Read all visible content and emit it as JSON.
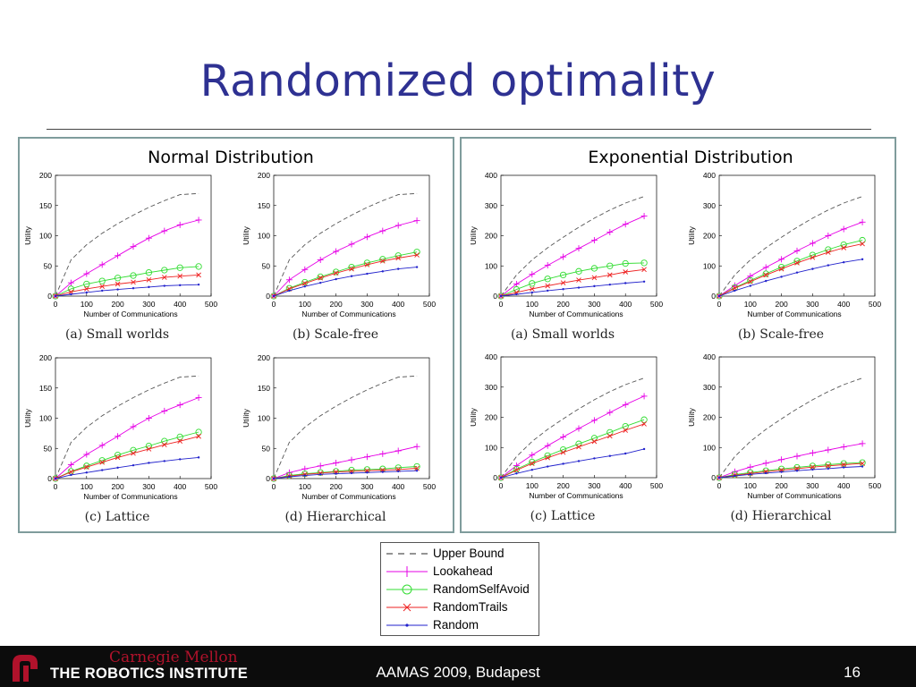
{
  "title": "Randomized optimality",
  "panels": [
    {
      "heading": "Normal Distribution"
    },
    {
      "heading": "Exponential Distribution"
    }
  ],
  "legend": {
    "items": [
      {
        "label": "Upper Bound",
        "color": "#555555",
        "marker": "dash"
      },
      {
        "label": "Lookahead",
        "color": "#e600e6",
        "marker": "plus"
      },
      {
        "label": "RandomSelfAvoid",
        "color": "#33dd33",
        "marker": "circle"
      },
      {
        "label": "RandomTrails",
        "color": "#ee2222",
        "marker": "cross"
      },
      {
        "label": "Random",
        "color": "#2222cc",
        "marker": "dot"
      }
    ]
  },
  "footer": {
    "logo_text": "Carnegie Mellon",
    "institute": "THE ROBOTICS INSTITUTE",
    "conference": "AAMAS 2009, Budapest",
    "slide_number": "16"
  },
  "chart_data": [
    {
      "type": "line",
      "distribution": "Normal Distribution",
      "caption": "(a) Small worlds",
      "xlabel": "Number of Communications",
      "ylabel": "Utility",
      "xlim": [
        0,
        500
      ],
      "ylim": [
        0,
        200
      ],
      "xticks": [
        "0",
        "100",
        "200",
        "300",
        "400",
        "500"
      ],
      "yticks": [
        "0",
        "50",
        "100",
        "150",
        "200"
      ],
      "x": [
        0,
        50,
        100,
        150,
        200,
        250,
        300,
        350,
        400,
        460
      ],
      "series": [
        {
          "name": "Upper Bound",
          "values": [
            0,
            60,
            85,
            104,
            120,
            134,
            147,
            158,
            168,
            170
          ]
        },
        {
          "name": "Lookahead",
          "values": [
            0,
            22,
            37,
            52,
            67,
            82,
            96,
            108,
            118,
            126
          ]
        },
        {
          "name": "RandomSelfAvoid",
          "values": [
            0,
            12,
            20,
            25,
            30,
            34,
            39,
            43,
            47,
            49
          ]
        },
        {
          "name": "RandomTrails",
          "values": [
            0,
            7,
            12,
            16,
            20,
            23,
            27,
            31,
            33,
            35
          ]
        },
        {
          "name": "Random",
          "values": [
            0,
            3,
            6,
            9,
            11,
            13,
            15,
            17,
            18,
            19
          ]
        }
      ]
    },
    {
      "type": "line",
      "distribution": "Normal Distribution",
      "caption": "(b) Scale-free",
      "xlabel": "Number of Communications",
      "ylabel": "Utility",
      "xlim": [
        0,
        500
      ],
      "ylim": [
        0,
        200
      ],
      "xticks": [
        "0",
        "100",
        "200",
        "300",
        "400",
        "500"
      ],
      "yticks": [
        "0",
        "50",
        "100",
        "150",
        "200"
      ],
      "x": [
        0,
        50,
        100,
        150,
        200,
        250,
        300,
        350,
        400,
        460
      ],
      "series": [
        {
          "name": "Upper Bound",
          "values": [
            0,
            60,
            85,
            104,
            120,
            134,
            147,
            158,
            168,
            170
          ]
        },
        {
          "name": "Lookahead",
          "values": [
            0,
            27,
            44,
            60,
            74,
            86,
            98,
            108,
            117,
            125
          ]
        },
        {
          "name": "RandomSelfAvoid",
          "values": [
            0,
            13,
            23,
            32,
            40,
            48,
            55,
            61,
            67,
            73
          ]
        },
        {
          "name": "RandomTrails",
          "values": [
            0,
            12,
            21,
            30,
            38,
            45,
            52,
            58,
            63,
            68
          ]
        },
        {
          "name": "Random",
          "values": [
            0,
            9,
            16,
            22,
            28,
            33,
            37,
            41,
            45,
            48
          ]
        }
      ]
    },
    {
      "type": "line",
      "distribution": "Normal Distribution",
      "caption": "(c) Lattice",
      "xlabel": "Number of Communications",
      "ylabel": "Utility",
      "xlim": [
        0,
        500
      ],
      "ylim": [
        0,
        200
      ],
      "xticks": [
        "0",
        "100",
        "200",
        "300",
        "400",
        "500"
      ],
      "yticks": [
        "0",
        "50",
        "100",
        "150",
        "200"
      ],
      "x": [
        0,
        50,
        100,
        150,
        200,
        250,
        300,
        350,
        400,
        460
      ],
      "series": [
        {
          "name": "Upper Bound",
          "values": [
            0,
            60,
            85,
            104,
            120,
            134,
            147,
            158,
            168,
            170
          ]
        },
        {
          "name": "Lookahead",
          "values": [
            0,
            23,
            40,
            55,
            70,
            86,
            100,
            112,
            122,
            134
          ]
        },
        {
          "name": "RandomSelfAvoid",
          "values": [
            0,
            12,
            21,
            30,
            39,
            47,
            54,
            62,
            69,
            77
          ]
        },
        {
          "name": "RandomTrails",
          "values": [
            0,
            11,
            19,
            27,
            35,
            42,
            49,
            56,
            62,
            70
          ]
        },
        {
          "name": "Random",
          "values": [
            0,
            6,
            10,
            14,
            18,
            22,
            26,
            29,
            32,
            35
          ]
        }
      ]
    },
    {
      "type": "line",
      "distribution": "Normal Distribution",
      "caption": "(d) Hierarchical",
      "xlabel": "Number of Communications",
      "ylabel": "Utility",
      "xlim": [
        0,
        500
      ],
      "ylim": [
        0,
        200
      ],
      "xticks": [
        "0",
        "100",
        "200",
        "300",
        "400",
        "500"
      ],
      "yticks": [
        "0",
        "50",
        "100",
        "150",
        "200"
      ],
      "x": [
        0,
        50,
        100,
        150,
        200,
        250,
        300,
        350,
        400,
        460
      ],
      "series": [
        {
          "name": "Upper Bound",
          "values": [
            0,
            60,
            85,
            104,
            120,
            134,
            147,
            158,
            168,
            170
          ]
        },
        {
          "name": "Lookahead",
          "values": [
            0,
            10,
            16,
            21,
            26,
            31,
            36,
            41,
            46,
            53
          ]
        },
        {
          "name": "RandomSelfAvoid",
          "values": [
            0,
            5,
            8,
            10,
            12,
            14,
            15,
            16,
            18,
            20
          ]
        },
        {
          "name": "RandomTrails",
          "values": [
            0,
            4,
            7,
            9,
            11,
            12,
            13,
            14,
            15,
            17
          ]
        },
        {
          "name": "Random",
          "values": [
            0,
            3,
            5,
            7,
            8,
            9,
            10,
            11,
            12,
            13
          ]
        }
      ]
    },
    {
      "type": "line",
      "distribution": "Exponential Distribution",
      "caption": "(a) Small worlds",
      "xlabel": "Number of Communications",
      "ylabel": "Utility",
      "xlim": [
        0,
        500
      ],
      "ylim": [
        0,
        400
      ],
      "xticks": [
        "0",
        "100",
        "200",
        "300",
        "400",
        "500"
      ],
      "yticks": [
        "0",
        "100",
        "200",
        "300",
        "400"
      ],
      "x": [
        0,
        50,
        100,
        150,
        200,
        250,
        300,
        350,
        400,
        460
      ],
      "series": [
        {
          "name": "Upper Bound",
          "values": [
            0,
            70,
            120,
            160,
            195,
            228,
            258,
            285,
            308,
            330
          ]
        },
        {
          "name": "Lookahead",
          "values": [
            0,
            40,
            72,
            102,
            130,
            158,
            185,
            212,
            238,
            265
          ]
        },
        {
          "name": "RandomSelfAvoid",
          "values": [
            0,
            22,
            42,
            57,
            70,
            82,
            92,
            100,
            108,
            110
          ]
        },
        {
          "name": "RandomTrails",
          "values": [
            0,
            12,
            24,
            34,
            44,
            53,
            61,
            70,
            80,
            88
          ]
        },
        {
          "name": "Random",
          "values": [
            0,
            6,
            12,
            18,
            23,
            28,
            33,
            38,
            43,
            48
          ]
        }
      ]
    },
    {
      "type": "line",
      "distribution": "Exponential Distribution",
      "caption": "(b) Scale-free",
      "xlabel": "Number of Communications",
      "ylabel": "Utility",
      "xlim": [
        0,
        500
      ],
      "ylim": [
        0,
        400
      ],
      "xticks": [
        "0",
        "100",
        "200",
        "300",
        "400",
        "500"
      ],
      "yticks": [
        "0",
        "100",
        "200",
        "300",
        "400"
      ],
      "x": [
        0,
        50,
        100,
        150,
        200,
        250,
        300,
        350,
        400,
        460
      ],
      "series": [
        {
          "name": "Upper Bound",
          "values": [
            0,
            70,
            120,
            160,
            195,
            228,
            258,
            285,
            308,
            330
          ]
        },
        {
          "name": "Lookahead",
          "values": [
            0,
            35,
            66,
            95,
            122,
            150,
            175,
            200,
            222,
            245
          ]
        },
        {
          "name": "RandomSelfAvoid",
          "values": [
            0,
            28,
            52,
            74,
            96,
            116,
            136,
            154,
            170,
            185
          ]
        },
        {
          "name": "RandomTrails",
          "values": [
            0,
            26,
            48,
            70,
            90,
            110,
            128,
            145,
            160,
            173
          ]
        },
        {
          "name": "Random",
          "values": [
            0,
            18,
            34,
            50,
            64,
            78,
            90,
            102,
            112,
            122
          ]
        }
      ]
    },
    {
      "type": "line",
      "distribution": "Exponential Distribution",
      "caption": "(c) Lattice",
      "xlabel": "Number of Communications",
      "ylabel": "Utility",
      "xlim": [
        0,
        500
      ],
      "ylim": [
        0,
        400
      ],
      "xticks": [
        "0",
        "100",
        "200",
        "300",
        "400",
        "500"
      ],
      "yticks": [
        "0",
        "100",
        "200",
        "300",
        "400"
      ],
      "x": [
        0,
        50,
        100,
        150,
        200,
        250,
        300,
        350,
        400,
        460
      ],
      "series": [
        {
          "name": "Upper Bound",
          "values": [
            0,
            70,
            120,
            160,
            195,
            228,
            258,
            285,
            308,
            330
          ]
        },
        {
          "name": "Lookahead",
          "values": [
            0,
            40,
            75,
            106,
            135,
            163,
            190,
            216,
            242,
            270
          ]
        },
        {
          "name": "RandomSelfAvoid",
          "values": [
            0,
            28,
            52,
            73,
            93,
            112,
            131,
            150,
            170,
            192
          ]
        },
        {
          "name": "RandomTrails",
          "values": [
            0,
            25,
            47,
            66,
            84,
            102,
            120,
            138,
            157,
            178
          ]
        },
        {
          "name": "Random",
          "values": [
            0,
            14,
            26,
            37,
            46,
            55,
            64,
            72,
            80,
            95
          ]
        }
      ]
    },
    {
      "type": "line",
      "distribution": "Exponential Distribution",
      "caption": "(d) Hierarchical",
      "xlabel": "Number of Communications",
      "ylabel": "Utility",
      "xlim": [
        0,
        500
      ],
      "ylim": [
        0,
        400
      ],
      "xticks": [
        "0",
        "100",
        "200",
        "300",
        "400",
        "500"
      ],
      "yticks": [
        "0",
        "100",
        "200",
        "300",
        "400"
      ],
      "x": [
        0,
        50,
        100,
        150,
        200,
        250,
        300,
        350,
        400,
        460
      ],
      "series": [
        {
          "name": "Upper Bound",
          "values": [
            0,
            70,
            120,
            160,
            195,
            228,
            258,
            285,
            308,
            330
          ]
        },
        {
          "name": "Lookahead",
          "values": [
            0,
            20,
            35,
            48,
            60,
            71,
            82,
            92,
            102,
            113
          ]
        },
        {
          "name": "RandomSelfAvoid",
          "values": [
            0,
            10,
            17,
            23,
            29,
            34,
            39,
            43,
            47,
            50
          ]
        },
        {
          "name": "RandomTrails",
          "values": [
            0,
            8,
            14,
            20,
            25,
            30,
            35,
            39,
            43,
            47
          ]
        },
        {
          "name": "Random",
          "values": [
            0,
            6,
            11,
            15,
            19,
            23,
            27,
            30,
            34,
            37
          ]
        }
      ]
    }
  ]
}
